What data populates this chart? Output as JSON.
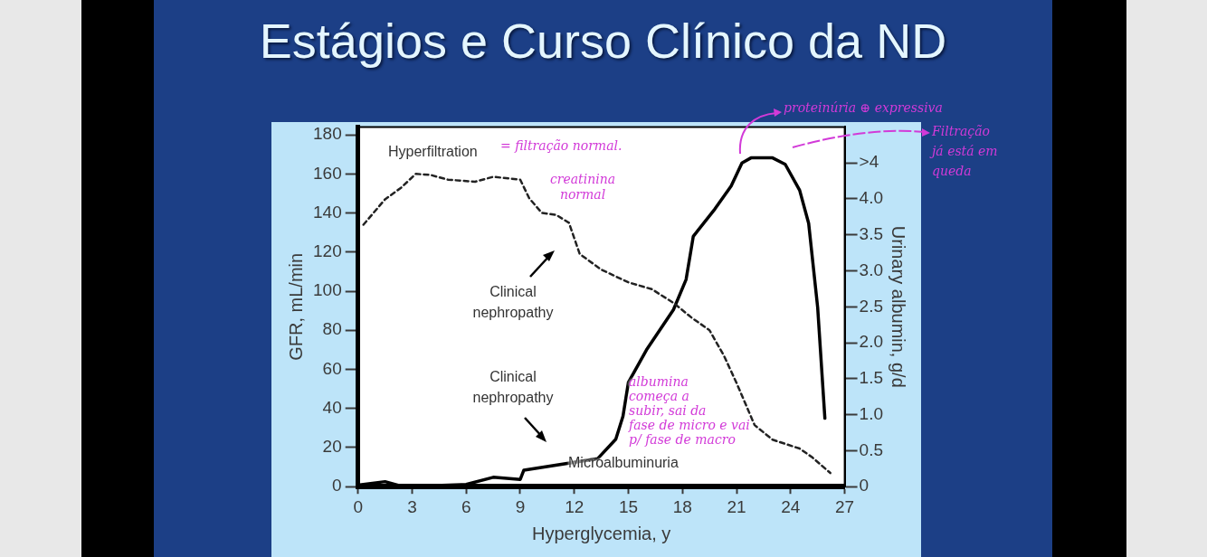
{
  "chart_data": {
    "type": "line",
    "title": "Estágios e Curso Clínico da ND",
    "xlabel": "Hyperglycemia, y",
    "ylabel": "GFR, mL/min",
    "y2label": "Urinary albumin, g/d",
    "xlim": [
      0,
      27
    ],
    "xticks": [
      0,
      3,
      6,
      9,
      12,
      15,
      18,
      21,
      24,
      27
    ],
    "ylim": [
      0,
      184
    ],
    "yticks": [
      0,
      20,
      40,
      60,
      80,
      100,
      120,
      140,
      160,
      180
    ],
    "y2lim": [
      0,
      5
    ],
    "y2ticks": [
      0,
      0.5,
      {
        "value": 1,
        "label": "1.0"
      },
      1.5,
      {
        "value": 2,
        "label": "2.0"
      },
      2.5,
      {
        "value": 3,
        "label": "3.0"
      },
      3.5,
      {
        "value": 4,
        "label": "4.0"
      },
      {
        "value": 4.5,
        "label": ">4"
      }
    ],
    "grid": false,
    "legend": false,
    "marker": "none",
    "series": [
      {
        "color": "#222222",
        "line_style": "dashed",
        "x": [
          0.3,
          1.5,
          2.4,
          3.2,
          4,
          5,
          6.5,
          7.5,
          9,
          9.5,
          10.2,
          11,
          11.7,
          12.3,
          13.5,
          15,
          16.3,
          17.5,
          18.5,
          19.5,
          20.3,
          21,
          22,
          23,
          24.5,
          25.2,
          26.2
        ],
        "values": [
          134,
          147,
          153,
          160,
          159.5,
          157,
          156,
          158.5,
          157,
          147.5,
          140,
          139,
          135,
          119,
          111,
          104.5,
          101,
          94,
          86.5,
          80,
          67,
          53,
          31.5,
          24,
          19.5,
          15,
          7
        ]
      },
      {
        "color": "#000000",
        "line_style": "solid",
        "axis": "y2",
        "x": [
          0,
          1.5,
          2.5,
          6,
          7.5,
          9,
          9.2,
          13.3,
          14.3,
          14.7,
          15,
          16,
          17.5,
          18.2,
          18.6,
          19.8,
          20.7,
          21.3,
          21.8,
          23,
          23.7,
          24.5,
          25,
          25.5,
          25.9
        ],
        "values": [
          0.02,
          0.07,
          0,
          0.03,
          0.13,
          0.1,
          0.23,
          0.39,
          0.66,
          0.98,
          1.45,
          1.9,
          2.46,
          2.88,
          3.48,
          3.86,
          4.18,
          4.5,
          4.57,
          4.57,
          4.48,
          4.12,
          3.66,
          2.49,
          0.95
        ]
      }
    ],
    "annotations": [
      "Hyperfiltration",
      "Clinical\nnephropathy",
      "Clinical\nnephropathy",
      "Microalbuminuria",
      "= filtração normal.",
      "creatinina\nnormal",
      "albumina\ncomeça a\nsubir, sai da\nfase de micro e vai\np/ fase de macro",
      "proteinúria ⊕ expressiva",
      "Filtração\njá está em\nqueda"
    ]
  }
}
